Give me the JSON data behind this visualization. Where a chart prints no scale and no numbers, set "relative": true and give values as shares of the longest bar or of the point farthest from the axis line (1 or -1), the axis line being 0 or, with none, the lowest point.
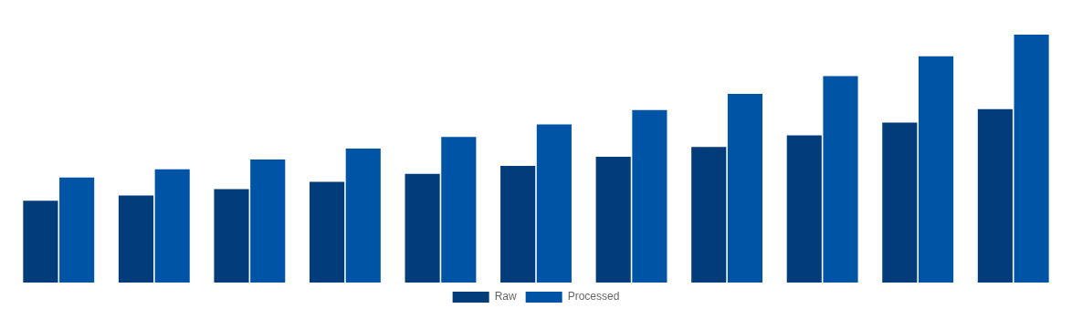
{
  "chart_data": {
    "type": "bar",
    "relative": true,
    "legend": "bottom",
    "categories": [
      null,
      null,
      null,
      null,
      null,
      null,
      null,
      null,
      null,
      null,
      null
    ],
    "series": [
      {
        "name": "Raw",
        "color": "#023c7a",
        "values": [
          0.33,
          0.351,
          0.377,
          0.406,
          0.438,
          0.471,
          0.507,
          0.547,
          0.594,
          0.645,
          0.699
        ]
      },
      {
        "name": "Processed",
        "color": "#0054a6",
        "values": [
          0.424,
          0.457,
          0.496,
          0.54,
          0.587,
          0.638,
          0.696,
          0.761,
          0.833,
          0.913,
          1
        ]
      }
    ]
  }
}
